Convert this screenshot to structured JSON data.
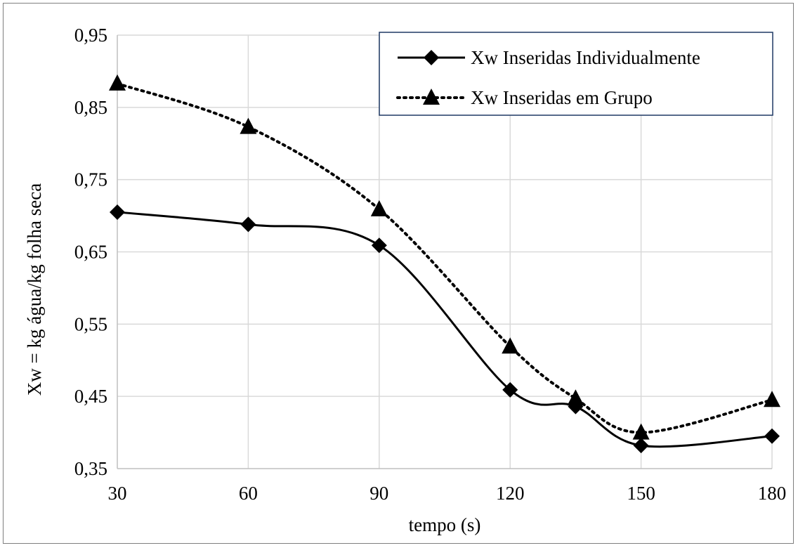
{
  "chart_data": {
    "type": "line",
    "x": [
      30,
      60,
      90,
      120,
      135,
      150,
      180
    ],
    "xlabel": "tempo (s)",
    "ylabel": "Xw = kg água/kg folha seca",
    "xlim": [
      30,
      180
    ],
    "ylim": [
      0.35,
      0.95
    ],
    "x_ticks": [
      30,
      60,
      90,
      120,
      150,
      180
    ],
    "x_tick_labels": [
      "30",
      "60",
      "90",
      "120",
      "150",
      "180"
    ],
    "y_ticks": [
      0.35,
      0.45,
      0.55,
      0.65,
      0.75,
      0.85,
      0.95
    ],
    "y_tick_labels": [
      "0,35",
      "0,45",
      "0,55",
      "0,65",
      "0,75",
      "0,85",
      "0,95"
    ],
    "grid": true,
    "legend_position": "top-right",
    "series": [
      {
        "name": "Xw Inseridas Individualmente",
        "values": [
          0.705,
          0.688,
          0.659,
          0.459,
          0.436,
          0.382,
          0.395
        ],
        "line_style": "solid",
        "marker": "diamond",
        "color": "#000000"
      },
      {
        "name": "Xw Inseridas em Grupo",
        "values": [
          0.883,
          0.823,
          0.709,
          0.519,
          0.447,
          0.4,
          0.445
        ],
        "line_style": "dotted",
        "marker": "triangle",
        "color": "#000000"
      }
    ]
  }
}
